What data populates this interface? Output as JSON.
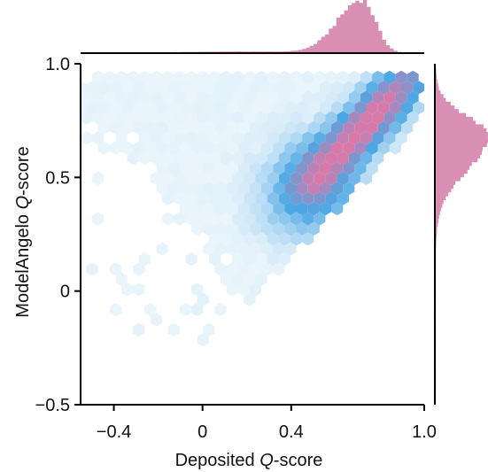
{
  "chart_data": {
    "type": "hexbin_with_marginal_histograms",
    "xlabel_prefix": "Deposited ",
    "xlabel_italic": "Q",
    "xlabel_suffix": "-score",
    "ylabel_prefix": "ModelAngelo ",
    "ylabel_italic": "Q",
    "ylabel_suffix": "-score",
    "xlim": [
      -0.55,
      1.0
    ],
    "ylim": [
      -0.5,
      1.0
    ],
    "x_ticks": [
      {
        "value": -0.4,
        "label": "−0.4"
      },
      {
        "value": 0,
        "label": "0"
      },
      {
        "value": 0.4,
        "label": "0.4"
      },
      {
        "value": 1.0,
        "label": "1.0"
      }
    ],
    "y_ticks": [
      {
        "value": -0.5,
        "label": "−0.5"
      },
      {
        "value": 0,
        "label": "0"
      },
      {
        "value": 0.5,
        "label": "0.5"
      },
      {
        "value": 1.0,
        "label": "1.0"
      }
    ],
    "density_color_low": "#d6ebf8",
    "density_color_mid": "#4aa6e4",
    "density_color_high": "#d77aaa",
    "marginal_hist_color": "#d88fb3",
    "marginal_x_peak": 0.72,
    "marginal_y_peak": 0.68,
    "grid": false,
    "legend": "none"
  }
}
